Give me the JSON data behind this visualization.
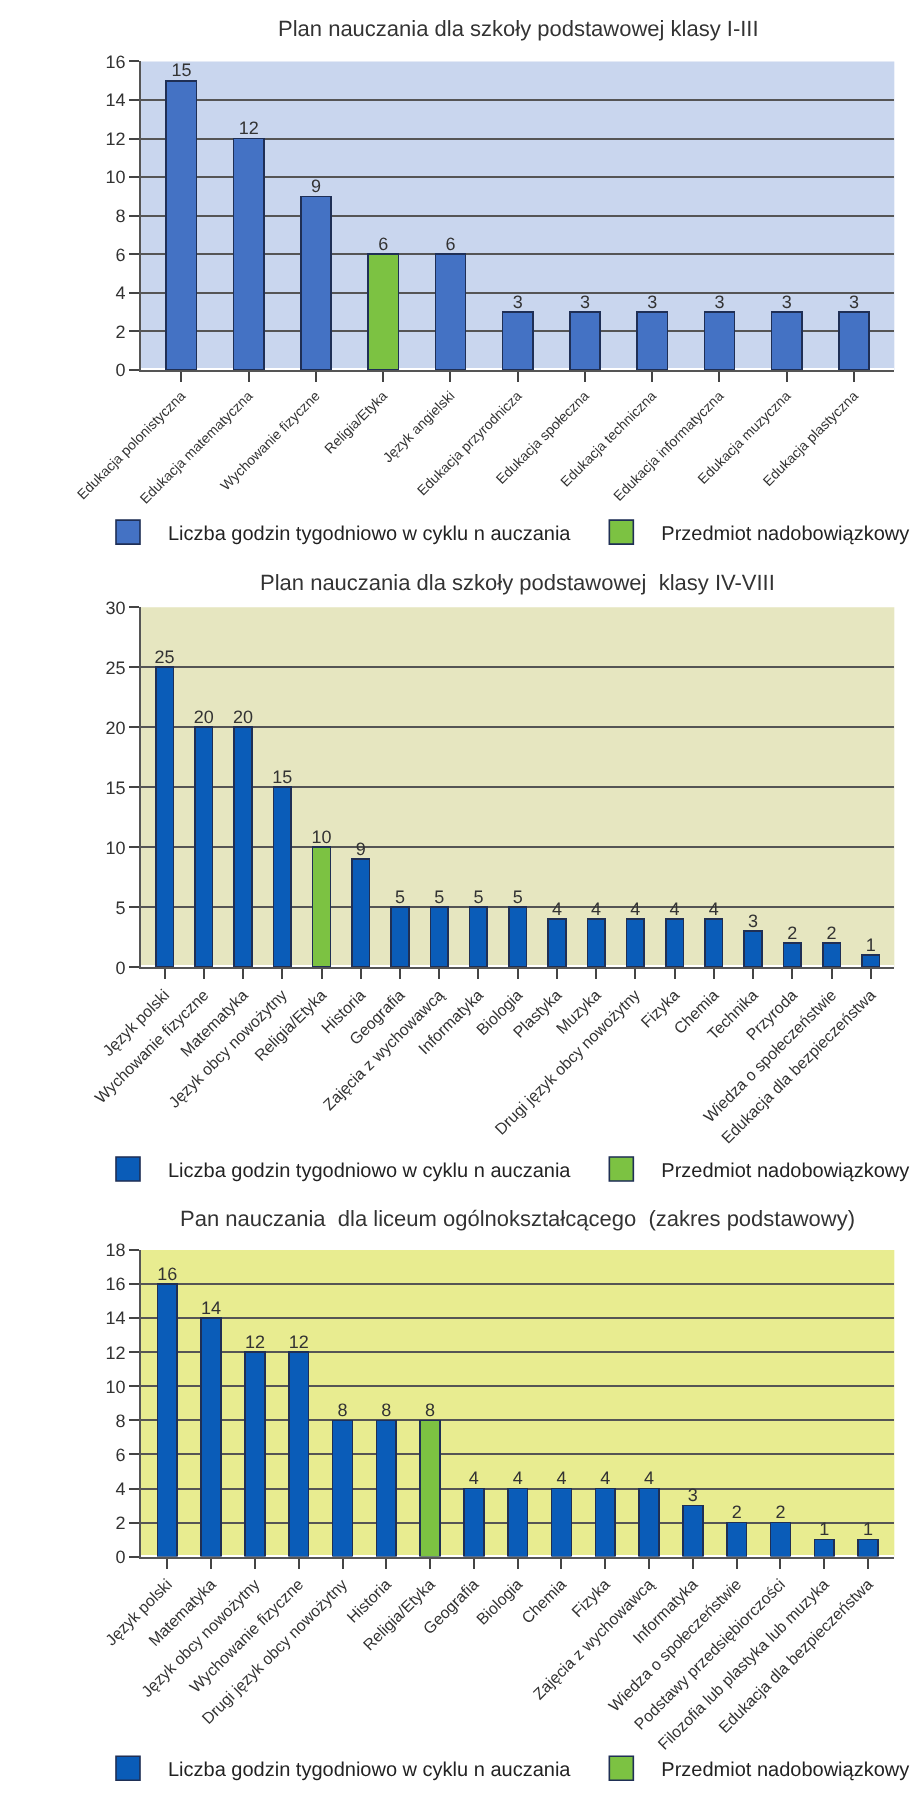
{
  "chart_data": [
    {
      "type": "bar",
      "title": "Plan nauczania dla szkoły podstawowej klasy I-III",
      "categories": [
        "Edukacja polonistyczna",
        "Edukacja matematyczna",
        "Wychowanie fizyczne",
        "Religia/Etyka",
        "Język angielski",
        "Edukacja przyrodnicza",
        "Edukacja społeczna",
        "Edukacja techniczna",
        "Edukacja informatyczna",
        "Edukacja muzyczna",
        "Edukacja plastyczna"
      ],
      "stacked": true,
      "series": [
        {
          "name": "Liczba godzin tygodniowo w cyklu n auczania",
          "color": "#4472c4",
          "values": [
            15,
            12,
            9,
            null,
            6,
            3,
            3,
            3,
            3,
            3,
            3
          ]
        },
        {
          "name": "Przedmiot nadobowiązkowy",
          "color": "#7cc242",
          "values": [
            null,
            null,
            null,
            6,
            null,
            null,
            null,
            null,
            null,
            null,
            null
          ]
        }
      ],
      "ylim": [
        0,
        16
      ],
      "yticks": [
        0,
        2,
        4,
        6,
        8,
        10,
        12,
        14,
        16
      ],
      "grid": "y",
      "data_labels": true,
      "legend": "bottom"
    },
    {
      "type": "bar",
      "title": "Plan nauczania dla szkoły podstawowej  klasy IV-VIII",
      "categories": [
        "Język polski",
        "Wychowanie fizyczne",
        "Matematyka",
        "Język obcy nowożytny",
        "Religia/Etyka",
        "Historia",
        "Geografia",
        "Zajęcia z wychowawcą",
        "Informatyka",
        "Biologia",
        "Plastyka",
        "Muzyka",
        "Drugi język obcy nowożytny",
        "Fizyka",
        "Chemia",
        "Technika",
        "Przyroda",
        "Wiedza o społeczeństwie",
        "Edukacja dla bezpieczeństwa"
      ],
      "stacked": true,
      "series": [
        {
          "name": "Liczba godzin tygodniowo w cyklu n auczania",
          "color": "#0a5cb8",
          "values": [
            25,
            20,
            20,
            15,
            null,
            9,
            5,
            5,
            5,
            5,
            4,
            4,
            4,
            4,
            4,
            3,
            2,
            2,
            1
          ]
        },
        {
          "name": "Przedmiot nadobowiązkowy",
          "color": "#7cc242",
          "values": [
            null,
            null,
            null,
            null,
            10,
            null,
            null,
            null,
            null,
            null,
            null,
            null,
            null,
            null,
            null,
            null,
            null,
            null,
            null
          ]
        }
      ],
      "ylim": [
        0,
        30
      ],
      "yticks": [
        0,
        5,
        10,
        15,
        20,
        25,
        30
      ],
      "grid": "y",
      "data_labels": true,
      "legend": "bottom"
    },
    {
      "type": "bar",
      "title": "Pan nauczania  dla liceum ogólnokształcącego  (zakres podstawowy)",
      "categories": [
        "Język polski",
        "Matematyka",
        "Język obcy nowożytny",
        "Wychowanie fizyczne",
        "Drugi język obcy nowożytny",
        "Historia",
        "Religia/Etyka",
        "Geografia",
        "Biologia",
        "Chemia",
        "Fizyka",
        "Zajęcia z wychowawcą",
        "Informatyka",
        "Wiedza o społeczeństwie",
        "Podstawy przedsiębiorczości",
        "Filozofia lub plastyka lub muzyka",
        "Edukacja dla bezpieczeństwa"
      ],
      "stacked": true,
      "series": [
        {
          "name": "Liczba godzin tygodniowo w cyklu n auczania",
          "color": "#0a5cb8",
          "values": [
            16,
            14,
            12,
            12,
            8,
            8,
            null,
            4,
            4,
            4,
            4,
            4,
            3,
            2,
            2,
            1,
            1
          ]
        },
        {
          "name": "Przedmiot nadobowiązkowy",
          "color": "#7cc242",
          "values": [
            null,
            null,
            null,
            null,
            null,
            null,
            8,
            null,
            null,
            null,
            null,
            null,
            null,
            null,
            null,
            null,
            null
          ]
        }
      ],
      "ylim": [
        0,
        18
      ],
      "yticks": [
        0,
        2,
        4,
        6,
        8,
        10,
        12,
        14,
        16,
        18
      ],
      "grid": "y",
      "data_labels": true,
      "legend": "bottom"
    }
  ]
}
